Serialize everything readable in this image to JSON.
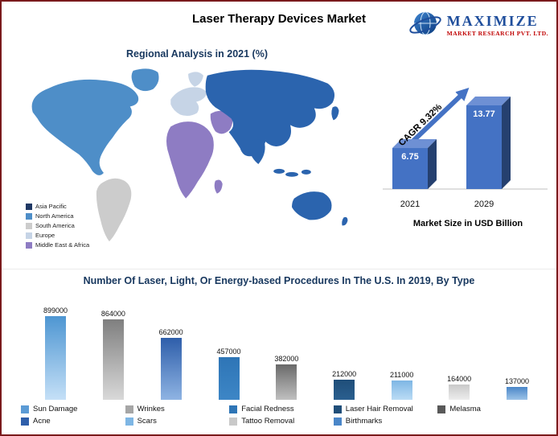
{
  "page": {
    "title": "Laser Therapy Devices Market",
    "border_color": "#7A1A1C"
  },
  "logo": {
    "name_top": "MAXIMIZE",
    "name_bottom": "MARKET RESEARCH PVT. LTD.",
    "accent_blue": "#1F4E9C",
    "accent_red": "#C00000"
  },
  "regional": {
    "title": "Regional Analysis in 2021 (%)",
    "legend": [
      {
        "label": "Asia Pacific",
        "color": "#1F3864"
      },
      {
        "label": "North America",
        "color": "#4E8EC8"
      },
      {
        "label": "South America",
        "color": "#CCCCCC"
      },
      {
        "label": "Europe",
        "color": "#C6D4E6"
      },
      {
        "label": "Middle East & Africa",
        "color": "#8E7CC3"
      }
    ],
    "map_colors": {
      "asia_pacific": "#2B64AE",
      "north_america": "#4E8EC8",
      "south_america": "#CCCCCC",
      "europe": "#C6D4E6",
      "middle_east_africa": "#8E7CC3"
    }
  },
  "market_size": {
    "cagr_label": "CAGR 9.32%",
    "caption": "Market Size in USD Billion",
    "years": [
      "2021",
      "2029"
    ],
    "values": [
      "6.75",
      "13.77"
    ],
    "bar_color": "#4472C4",
    "bar_top_color": "#6E90D4",
    "bar_side_color": "#25406F",
    "arrow_color": "#4472C4"
  },
  "procedures": {
    "title": "Number Of Laser, Light, Or Energy-based Procedures In The U.S. In 2019, By Type",
    "bars": [
      {
        "label": "Sun Damage",
        "value": "899000",
        "c1": "#4E96D2",
        "c2": "#C5E0F7"
      },
      {
        "label": "Wrinkes",
        "value": "864000",
        "c1": "#7F7F7F",
        "c2": "#D9D9D9"
      },
      {
        "label": "Acne",
        "value": "662000",
        "c1": "#2E5EAA",
        "c2": "#8FB4E3"
      },
      {
        "label": "Facial Redness",
        "value": "457000",
        "c1": "#2E75B6",
        "c2": "#3D86C6"
      },
      {
        "label": "Tattoo Removal",
        "value": "382000",
        "c1": "#696969",
        "c2": "#C0C0C0"
      },
      {
        "label": "Laser Hair Removal",
        "value": "212000",
        "c1": "#1F4E79",
        "c2": "#2A5F8F"
      },
      {
        "label": "Scars",
        "value": "211000",
        "c1": "#7EB6E4",
        "c2": "#BBDCF5"
      },
      {
        "label": "Melasma",
        "value": "164000",
        "c1": "#C9C9C9",
        "c2": "#EDEDED"
      },
      {
        "label": "Birthmarks",
        "value": "137000",
        "c1": "#4A86C8",
        "c2": "#9CC3E8"
      }
    ],
    "legend": [
      {
        "label": "Sun Damage",
        "color": "#5B9BD5"
      },
      {
        "label": "Wrinkes",
        "color": "#A6A6A6"
      },
      {
        "label": "Facial Redness",
        "color": "#2E75B6"
      },
      {
        "label": "Laser Hair Removal",
        "color": "#1F4E79"
      },
      {
        "label": "Melasma",
        "color": "#595959"
      },
      {
        "label": "Acne",
        "color": "#2E5EAA"
      },
      {
        "label": "Scars",
        "color": "#7EB6E4"
      },
      {
        "label": "Tattoo Removal",
        "color": "#C9C9C9"
      },
      {
        "label": "Birthmarks",
        "color": "#4A86C8"
      }
    ]
  },
  "chart_data": [
    {
      "type": "bar",
      "title": "Market Size in USD Billion",
      "categories": [
        "2021",
        "2029"
      ],
      "values": [
        6.75,
        13.77
      ],
      "ylabel": "USD Billion",
      "annotations": [
        "CAGR 9.32%"
      ],
      "bar_style": "3d",
      "legend_position": "none"
    },
    {
      "type": "bar",
      "title": "Number Of Laser, Light, Or Energy-based Procedures In The U.S. In 2019, By Type",
      "categories": [
        "Sun Damage",
        "Wrinkes",
        "Acne",
        "Facial Redness",
        "Tattoo Removal",
        "Laser Hair Removal",
        "Scars",
        "Melasma",
        "Birthmarks"
      ],
      "values": [
        899000,
        864000,
        662000,
        457000,
        382000,
        212000,
        211000,
        164000,
        137000
      ],
      "xlabel": "",
      "ylabel": "",
      "grid": false,
      "legend_position": "bottom"
    }
  ]
}
